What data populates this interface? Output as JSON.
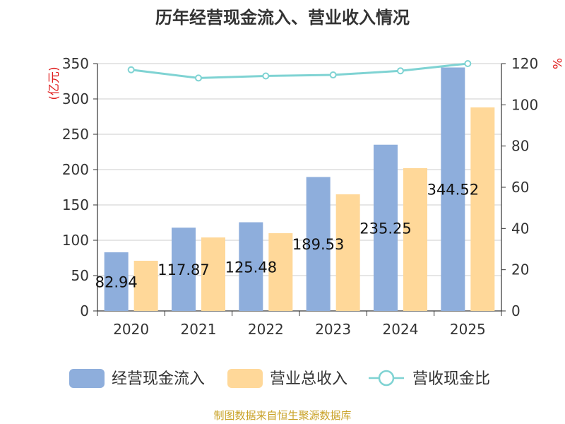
{
  "title": "历年经营现金流入、营业收入情况",
  "source": "制图数据来自恒生聚源数据库",
  "colors": {
    "bar1": "#8eaedc",
    "bar2": "#ffd899",
    "line": "#7fd3d3",
    "unit": "#e01f1f",
    "source": "#c9a227"
  },
  "chart_data": {
    "type": "bar",
    "title": "历年经营现金流入、营业收入情况",
    "categories": [
      "2020",
      "2021",
      "2022",
      "2023",
      "2024",
      "2025"
    ],
    "series": [
      {
        "name": "经营现金流入",
        "type": "bar",
        "axis": "left",
        "values": [
          82.94,
          117.87,
          125.48,
          189.53,
          235.25,
          344.52
        ]
      },
      {
        "name": "营业总收入",
        "type": "bar",
        "axis": "left",
        "values": [
          71,
          104,
          110,
          165,
          202,
          288
        ]
      },
      {
        "name": "营收现金比",
        "type": "line",
        "axis": "right",
        "values": [
          117,
          113,
          114,
          114.5,
          116.5,
          120
        ]
      }
    ],
    "data_labels": [
      "82.94",
      "117.87",
      "125.48",
      "189.53",
      "235.25",
      "344.52"
    ],
    "ylabel_left": "(亿元)",
    "ylabel_right": "%",
    "ylim_left": [
      0,
      350
    ],
    "ylim_right": [
      0,
      120
    ],
    "yticks_left": [
      "0",
      "50",
      "100",
      "150",
      "200",
      "250",
      "300",
      "350"
    ],
    "yticks_right": [
      "0",
      "20",
      "40",
      "60",
      "80",
      "100",
      "120"
    ],
    "grid": true,
    "legend_position": "bottom"
  }
}
